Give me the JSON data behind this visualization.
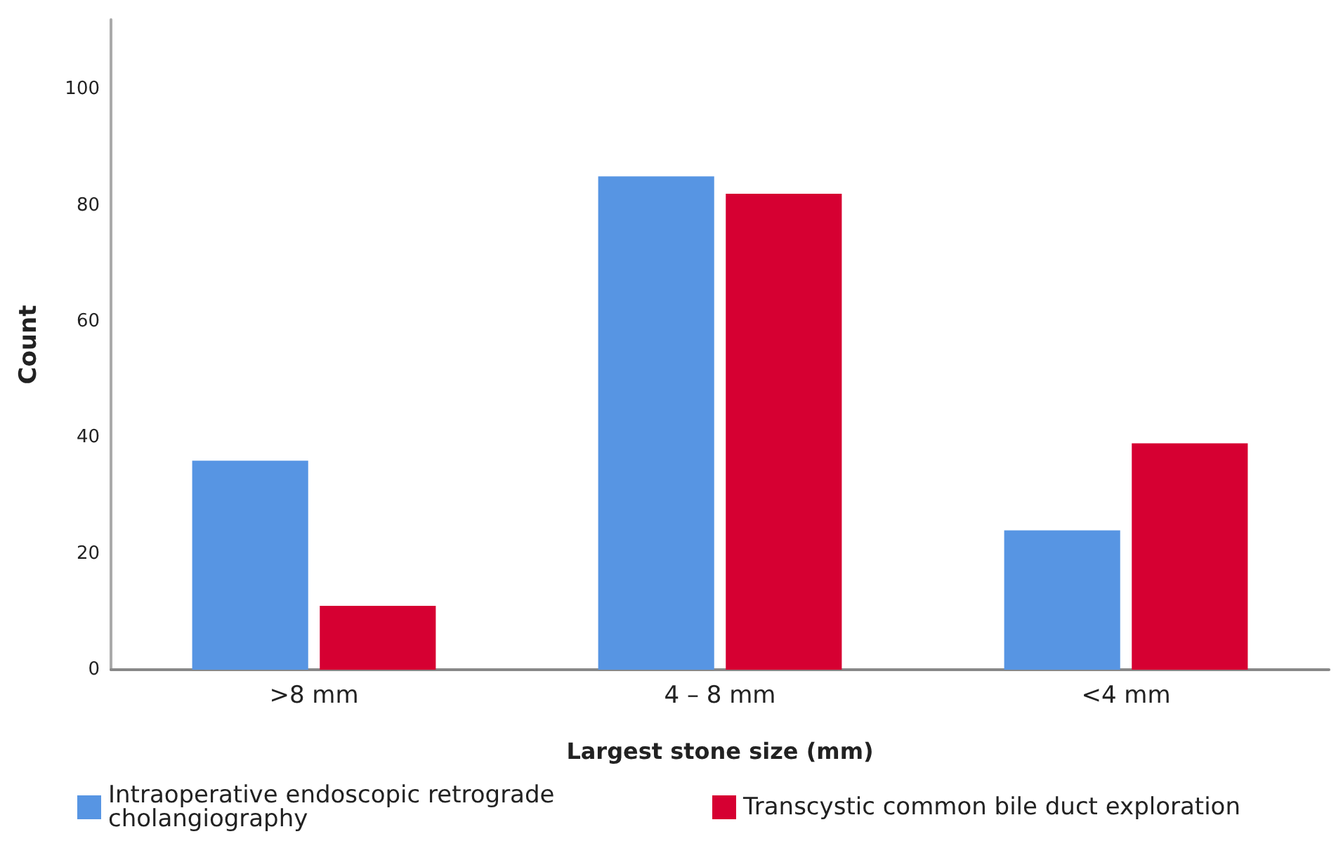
{
  "chart_data": {
    "type": "bar",
    "xlabel": "Largest stone size (mm)",
    "ylabel": "Count",
    "categories": [
      ">8 mm",
      "4 – 8 mm",
      "<4 mm"
    ],
    "series": [
      {
        "name": "Intraoperative endoscopic retrograde cholangiography",
        "color": "#5795e3",
        "values": [
          36,
          85,
          24
        ]
      },
      {
        "name": "Transcystic common bile duct exploration",
        "color": "#d60032",
        "values": [
          11,
          82,
          39
        ]
      }
    ],
    "ylim": [
      0,
      112
    ],
    "yticks": [
      0,
      20,
      40,
      60,
      80,
      100
    ],
    "grid": false,
    "legend": "bottom"
  }
}
